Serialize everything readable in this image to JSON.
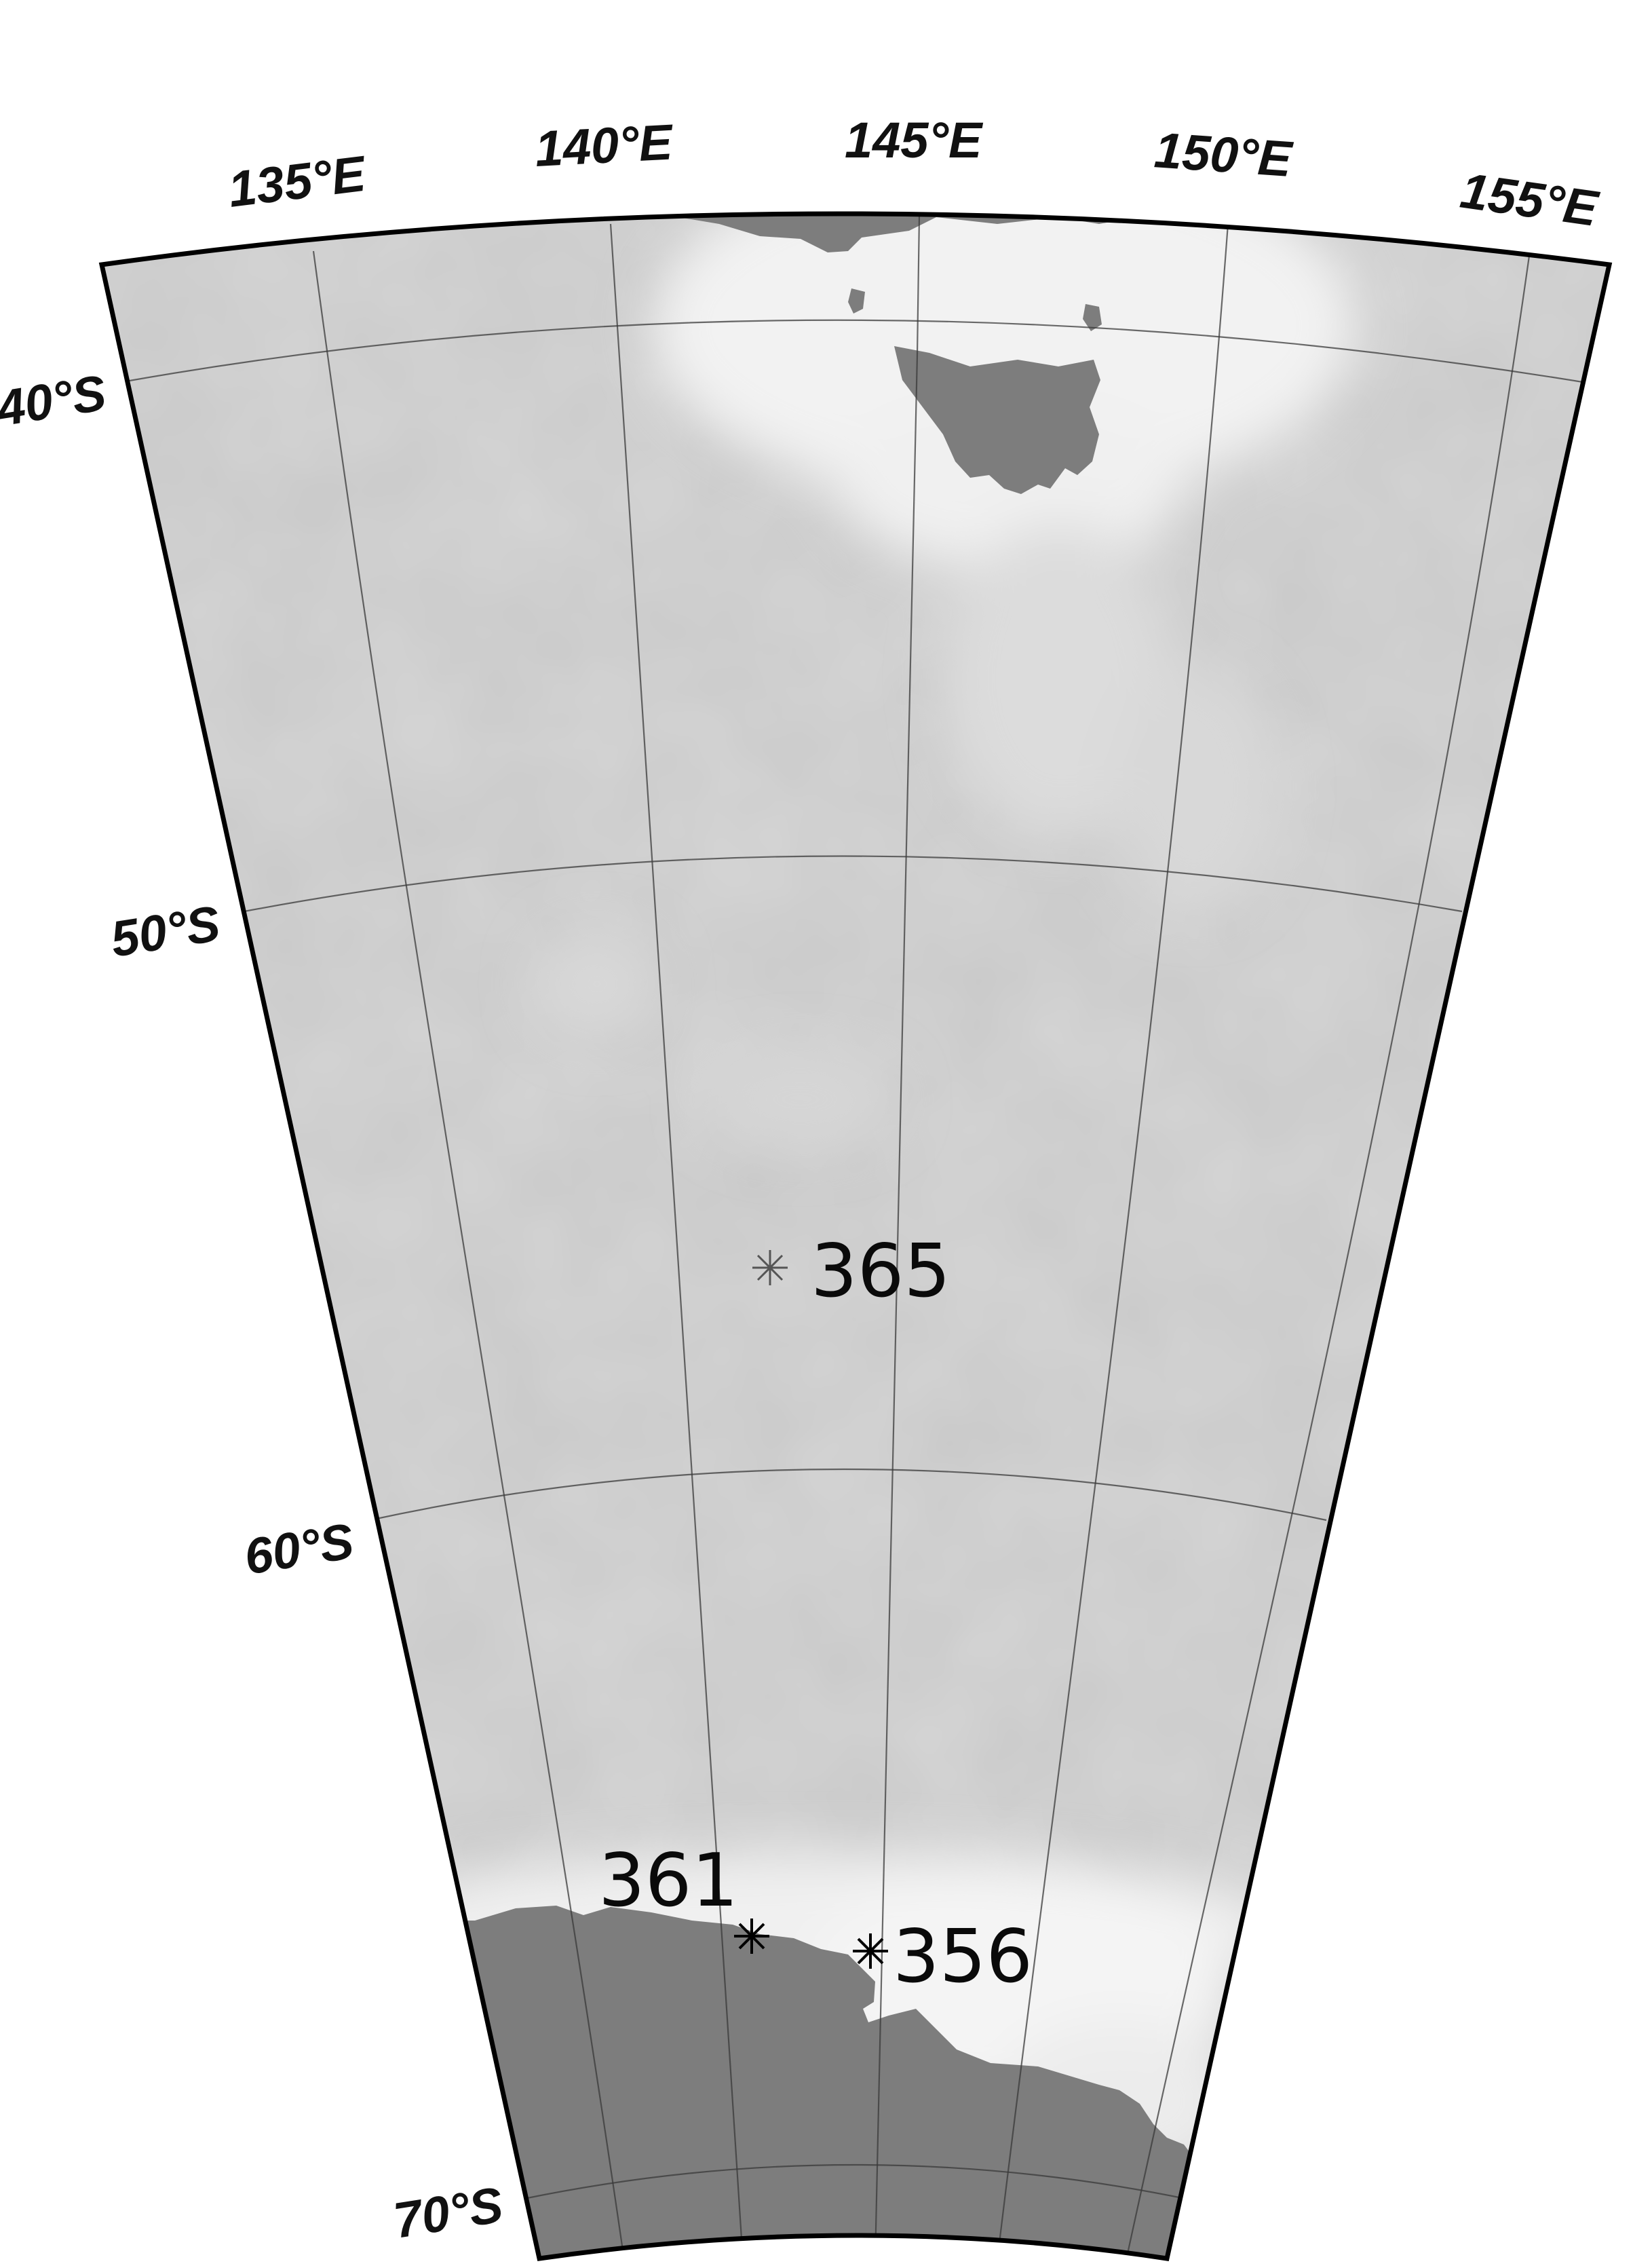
{
  "map": {
    "longitude_labels": [
      "135°E",
      "140°E",
      "145°E",
      "150°E",
      "155°E"
    ],
    "latitude_labels": [
      "40°S",
      "50°S",
      "60°S",
      "70°S"
    ],
    "sites": [
      {
        "label": "365",
        "lon": 140.9,
        "lat": -54.9
      },
      {
        "label": "361",
        "lon": 141.2,
        "lat": -65.8
      },
      {
        "label": "356",
        "lon": 143.0,
        "lat": -65.9
      }
    ],
    "colors": {
      "ocean": "#c9c9c9",
      "ocean_high": "#efefef",
      "land": "#7d7d7d",
      "frame": "#000000",
      "grid": "#3a3a3a"
    },
    "landmasses": [
      "Australia",
      "Tasmania",
      "Antarctica"
    ]
  }
}
